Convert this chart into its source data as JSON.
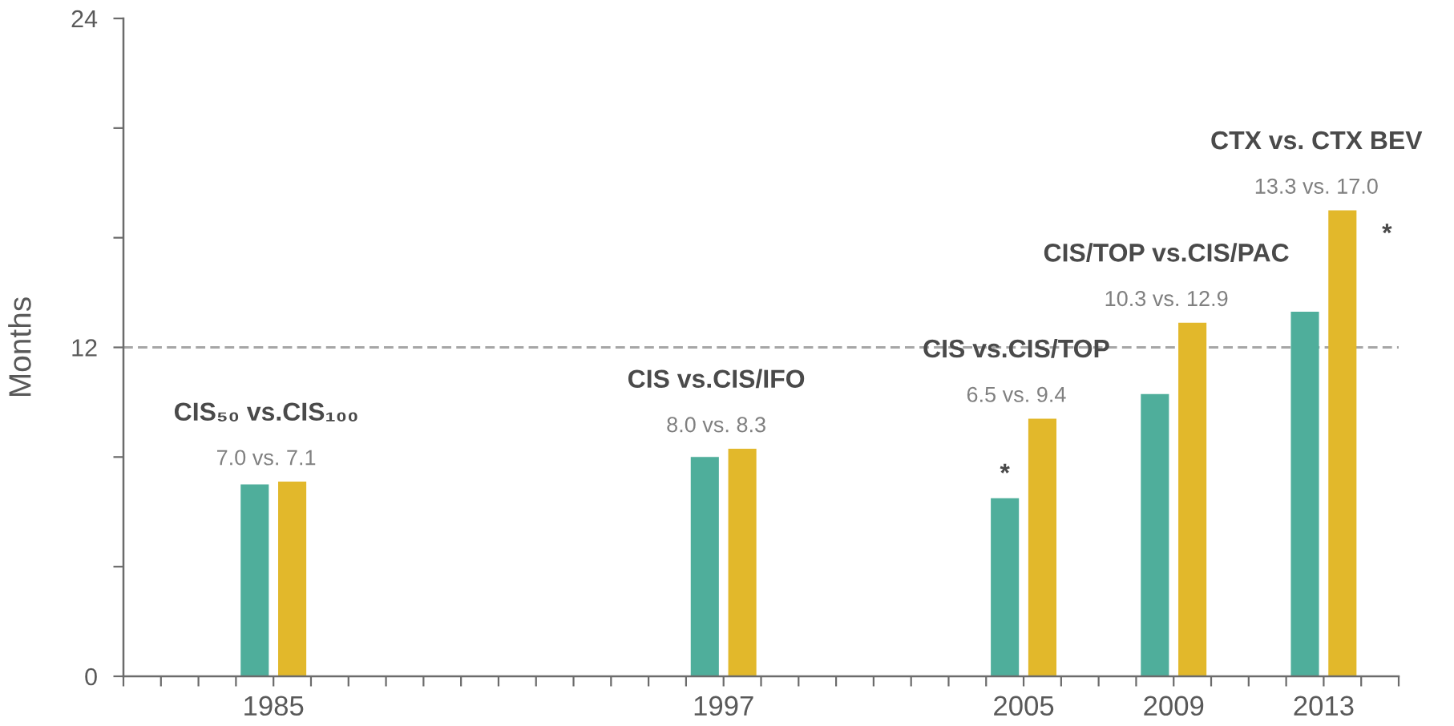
{
  "chart_data": {
    "type": "bar",
    "x": [
      1985,
      1997,
      2005,
      2009,
      2013
    ],
    "series": [
      {
        "color": "#4fae9b",
        "values": [
          7.0,
          8.0,
          6.5,
          10.3,
          13.3
        ]
      },
      {
        "color": "#e2b82b",
        "values": [
          7.1,
          8.3,
          9.4,
          12.9,
          17.0
        ]
      }
    ],
    "ylabel": "Months",
    "xlim": [
      1981,
      2015
    ],
    "xticks": [
      {
        "value": 1981,
        "label": null
      },
      {
        "value": 1982,
        "label": null
      },
      {
        "value": 1983,
        "label": null
      },
      {
        "value": 1984,
        "label": null
      },
      1985,
      {
        "value": 1986,
        "label": null
      },
      {
        "value": 1987,
        "label": null
      },
      {
        "value": 1988,
        "label": null
      },
      {
        "value": 1989,
        "label": null
      },
      {
        "value": 1990,
        "label": null
      },
      {
        "value": 1991,
        "label": null
      },
      {
        "value": 1992,
        "label": null
      },
      {
        "value": 1993,
        "label": null
      },
      {
        "value": 1994,
        "label": null
      },
      {
        "value": 1995,
        "label": null
      },
      {
        "value": 1996,
        "label": null
      },
      1997,
      {
        "value": 1998,
        "label": null
      },
      {
        "value": 1999,
        "label": null
      },
      {
        "value": 2000,
        "label": null
      },
      {
        "value": 2001,
        "label": null
      },
      {
        "value": 2002,
        "label": null
      },
      {
        "value": 2003,
        "label": null
      },
      {
        "value": 2004,
        "label": null
      },
      2005,
      {
        "value": 2006,
        "label": null
      },
      {
        "value": 2007,
        "label": null
      },
      {
        "value": 2008,
        "label": null
      },
      2009,
      {
        "value": 2010,
        "label": null
      },
      {
        "value": 2011,
        "label": null
      },
      {
        "value": 2012,
        "label": null
      },
      2013,
      {
        "value": 2014,
        "label": null
      },
      {
        "value": 2015,
        "label": null
      }
    ],
    "ylim": [
      0,
      24
    ],
    "yticks": [
      0,
      {
        "value": 4,
        "label": null
      },
      {
        "value": 8,
        "label": null
      },
      12,
      {
        "value": 16,
        "label": null
      },
      {
        "value": 20,
        "label": null
      },
      24
    ],
    "ref_lines": [
      {
        "axis": "y",
        "value": 12,
        "color": "#a6a6a6",
        "line_style": "dashed"
      }
    ],
    "annotations": [
      {
        "text": "7.0 vs. 7.1",
        "x": 1985.5,
        "y": 7.1
      },
      {
        "text": "CIS₅₀ vs.CIS₁₀₀",
        "x": 1985.5,
        "y": 7.1
      },
      {
        "text": "8.0 vs. 8.3",
        "x": 1997.5,
        "y": 8.3
      },
      {
        "text": "CIS vs.CIS/IFO",
        "x": 1997.5,
        "y": 8.3
      },
      {
        "text": "6.5 vs. 9.4",
        "x": 2005.5,
        "y": 9.4
      },
      {
        "text": "CIS vs.CIS/TOP",
        "x": 2005.5,
        "y": 9.4
      },
      {
        "text": "10.3 vs. 12.9",
        "x": 2009.5,
        "y": 12.9
      },
      {
        "text": "CIS/TOP vs.CIS/PAC",
        "x": 2009.5,
        "y": 12.9
      },
      {
        "text": "13.3 vs. 17.0",
        "x": 2013.5,
        "y": 17.0
      },
      {
        "text": "CTX vs. CTX BEV",
        "x": 2013.5,
        "y": 17.0
      },
      {
        "text": "*",
        "x": 2004.5,
        "y": 6.5
      },
      {
        "text": "*",
        "x": 2013.5,
        "y": 17.0
      }
    ]
  }
}
